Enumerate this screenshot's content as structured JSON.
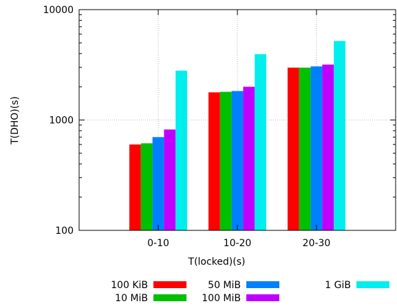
{
  "chart_data": {
    "type": "bar",
    "title": "",
    "xlabel": "T(locked)(s)",
    "ylabel": "T(DHO)(s)",
    "yscale": "log",
    "ylim": [
      100,
      10000
    ],
    "y_ticks": [
      100,
      1000,
      10000
    ],
    "y_tick_labels": [
      "100",
      "1000",
      "10000"
    ],
    "grid": true,
    "legend_position": "bottom",
    "categories": [
      "0-10",
      "10-20",
      "20-30"
    ],
    "series": [
      {
        "name": "100 KiB",
        "color": "#ff0000",
        "values": [
          600,
          1780,
          2980
        ]
      },
      {
        "name": "10 MiB",
        "color": "#00c000",
        "values": [
          615,
          1800,
          2980
        ]
      },
      {
        "name": "50 MiB",
        "color": "#0080ff",
        "values": [
          700,
          1830,
          3060
        ]
      },
      {
        "name": "100 MiB",
        "color": "#c000ff",
        "values": [
          820,
          2000,
          3180
        ]
      },
      {
        "name": "1 GiB",
        "color": "#00eeee",
        "values": [
          2800,
          3950,
          5200
        ]
      }
    ]
  }
}
